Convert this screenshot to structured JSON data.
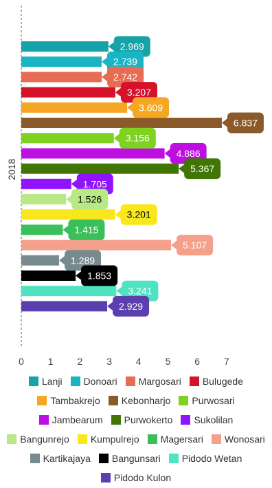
{
  "chart_data": {
    "type": "bar",
    "orientation": "horizontal",
    "ylabel": "2018",
    "categories": [
      "2018"
    ],
    "xlim": [
      0,
      7
    ],
    "x_ticks": [
      "0",
      "1",
      "2",
      "3",
      "4",
      "5",
      "6",
      "7"
    ],
    "legend_position": "bottom",
    "series": [
      {
        "name": "Lanji",
        "value": 2.969,
        "label": "2.969",
        "color": "#17a2a8",
        "label_text_color": "#ffffff"
      },
      {
        "name": "Donoari",
        "value": 2.739,
        "label": "2.739",
        "color": "#1ab5c4",
        "label_text_color": "#ffffff"
      },
      {
        "name": "Margosari",
        "value": 2.742,
        "label": "2.742",
        "color": "#e86b53",
        "label_text_color": "#ffffff"
      },
      {
        "name": "Bulugede",
        "value": 3.207,
        "label": "3.207",
        "color": "#d6112a",
        "label_text_color": "#ffffff"
      },
      {
        "name": "Tambakrejo",
        "value": 3.609,
        "label": "3.609",
        "color": "#f5a623",
        "label_text_color": "#ffffff"
      },
      {
        "name": "Kebonharjo",
        "value": 6.837,
        "label": "6.837",
        "color": "#8b5a2b",
        "label_text_color": "#ffffff"
      },
      {
        "name": "Purwosari",
        "value": 3.156,
        "label": "3.156",
        "color": "#7ed321",
        "label_text_color": "#ffffff"
      },
      {
        "name": "Jambearum",
        "value": 4.886,
        "label": "4.886",
        "color": "#bd10e0",
        "label_text_color": "#ffffff"
      },
      {
        "name": "Purwokerto",
        "value": 5.367,
        "label": "5.367",
        "color": "#417505",
        "label_text_color": "#ffffff"
      },
      {
        "name": "Sukolilan",
        "value": 1.705,
        "label": "1.705",
        "color": "#9013fe",
        "label_text_color": "#ffffff"
      },
      {
        "name": "Bangunrejo",
        "value": 1.526,
        "label": "1.526",
        "color": "#b8e986",
        "label_text_color": "#000000"
      },
      {
        "name": "Kumpulrejo",
        "value": 3.201,
        "label": "3.201",
        "color": "#f8e71c",
        "label_text_color": "#000000"
      },
      {
        "name": "Magersari",
        "value": 1.415,
        "label": "1.415",
        "color": "#3bbf5a",
        "label_text_color": "#ffffff"
      },
      {
        "name": "Wonosari",
        "value": 5.107,
        "label": "5.107",
        "color": "#f5a08a",
        "label_text_color": "#ffffff"
      },
      {
        "name": "Kartikajaya",
        "value": 1.289,
        "label": "1.289",
        "color": "#778b8f",
        "label_text_color": "#ffffff"
      },
      {
        "name": "Bangunsari",
        "value": 1.853,
        "label": "1.853",
        "color": "#000000",
        "label_text_color": "#ffffff"
      },
      {
        "name": "Pidodo Wetan",
        "value": 3.241,
        "label": "3.241",
        "color": "#50e3c2",
        "label_text_color": "#ffffff"
      },
      {
        "name": "Pidodo Kulon",
        "value": 2.929,
        "label": "2.929",
        "color": "#5b3fae",
        "label_text_color": "#ffffff"
      }
    ]
  }
}
